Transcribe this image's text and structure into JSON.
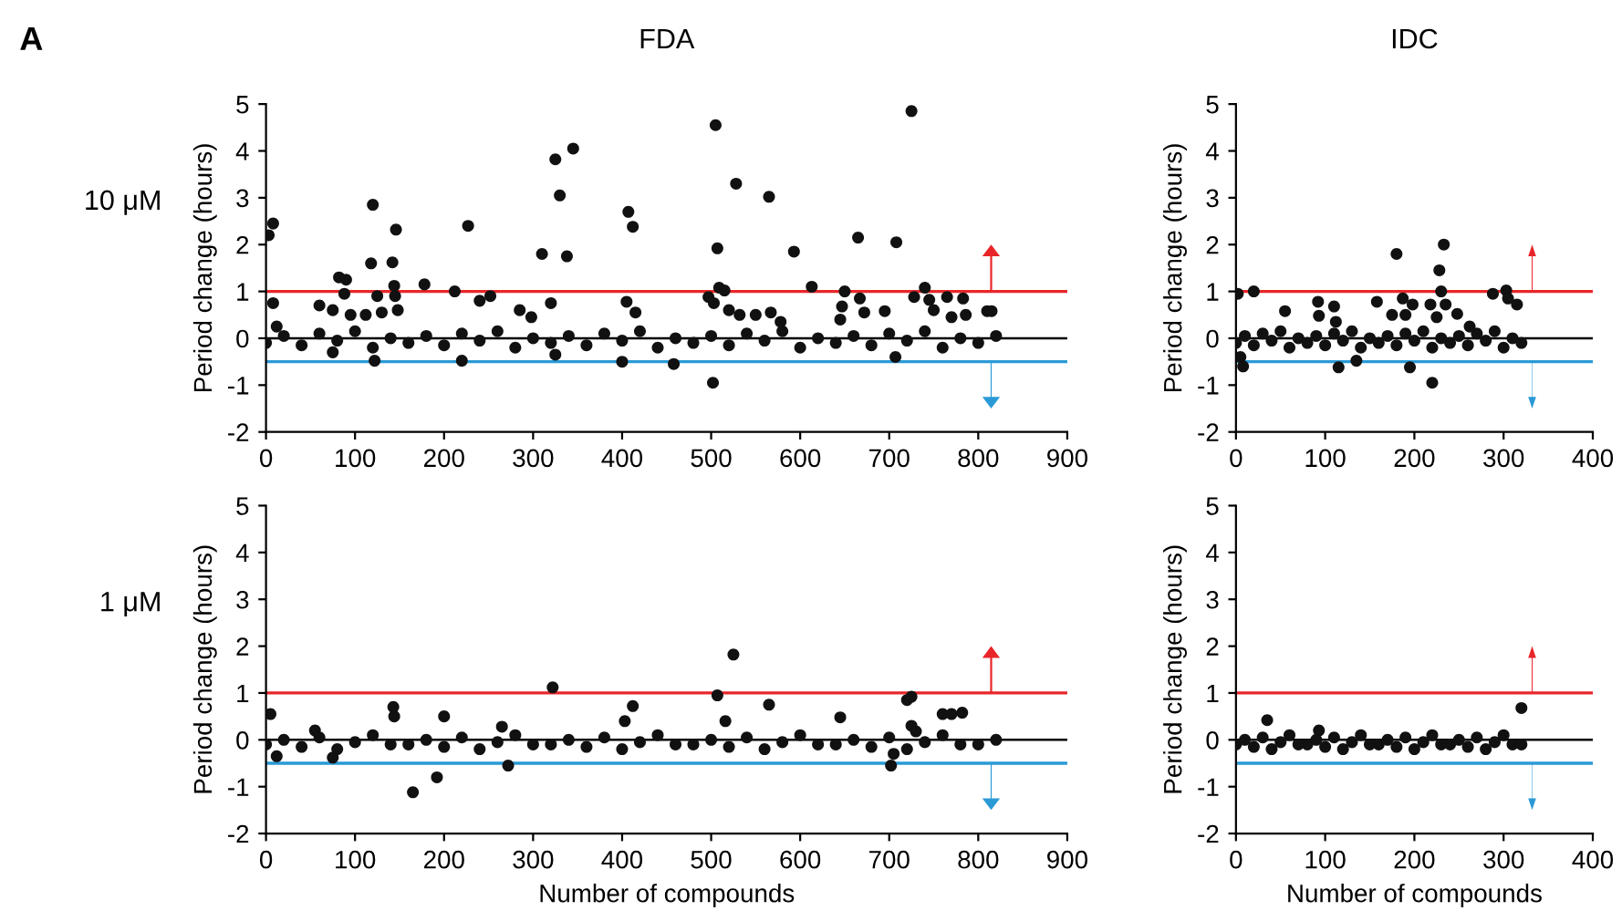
{
  "chart_data": [
    {
      "type": "scatter",
      "title": "FDA",
      "ylabel": "Period change (hours)",
      "annotations": [
        "A",
        "10 μM"
      ],
      "xlim": [
        0,
        900
      ],
      "xticks": [
        0,
        100,
        200,
        300,
        400,
        500,
        600,
        700,
        800,
        900
      ],
      "ylim": [
        -2,
        5
      ],
      "yticks": [
        -2,
        -1,
        0,
        1,
        2,
        3,
        4,
        5
      ],
      "grid": false,
      "legend": false,
      "marker": "circle",
      "ref_lines": [
        {
          "axis": "y",
          "value": 1,
          "color": "#e8262a"
        },
        {
          "axis": "y",
          "value": 0,
          "color": "#000000"
        },
        {
          "axis": "y",
          "value": -0.5,
          "color": "#2a9ad6"
        }
      ],
      "series": [
        {
          "color": "#111111",
          "x": [
            3,
            8,
            8,
            12,
            60,
            75,
            75,
            82,
            88,
            90,
            95,
            112,
            118,
            120,
            122,
            125,
            130,
            142,
            144,
            145,
            146,
            148,
            178,
            212,
            220,
            227,
            240,
            252,
            285,
            298,
            310,
            320,
            325,
            330,
            338,
            345,
            325,
            405,
            400,
            407,
            412,
            415,
            458,
            497,
            502,
            503,
            505,
            507,
            509,
            515,
            520,
            528,
            532,
            550,
            565,
            567,
            578,
            593,
            613,
            645,
            647,
            650,
            665,
            667,
            672,
            695,
            707,
            708,
            725,
            728,
            740,
            745,
            750,
            765,
            770,
            783,
            786,
            810,
            815
          ],
          "values": [
            2.2,
            2.45,
            0.75,
            0.25,
            0.7,
            0.6,
            -0.3,
            1.3,
            0.95,
            1.25,
            0.5,
            0.5,
            1.6,
            2.85,
            -0.48,
            0.9,
            0.55,
            1.62,
            1.12,
            0.9,
            2.32,
            0.6,
            1.15,
            1.0,
            -0.48,
            2.4,
            0.8,
            0.9,
            0.6,
            0.45,
            1.8,
            0.75,
            3.82,
            3.05,
            1.75,
            4.05,
            -0.35,
            0.78,
            -0.5,
            2.7,
            2.38,
            0.55,
            -0.55,
            0.88,
            -0.95,
            0.75,
            4.55,
            1.92,
            1.08,
            1.02,
            0.6,
            3.3,
            0.5,
            0.5,
            3.02,
            0.55,
            0.35,
            1.85,
            1.1,
            0.4,
            0.68,
            1.0,
            2.15,
            0.85,
            0.55,
            0.58,
            -0.4,
            2.05,
            4.85,
            0.88,
            1.08,
            0.82,
            0.6,
            0.88,
            0.45,
            0.85,
            0.5,
            0.58,
            0.58
          ]
        },
        {
          "color": "#111111",
          "x": [
            0,
            20,
            40,
            60,
            80,
            100,
            120,
            140,
            160,
            180,
            200,
            220,
            240,
            260,
            280,
            300,
            320,
            340,
            360,
            380,
            400,
            420,
            440,
            460,
            480,
            500,
            520,
            540,
            560,
            580,
            600,
            620,
            640,
            660,
            680,
            700,
            720,
            740,
            760,
            780,
            800,
            820
          ],
          "values": [
            -0.1,
            0.05,
            -0.15,
            0.1,
            -0.05,
            0.15,
            -0.2,
            0,
            -0.1,
            0.05,
            -0.15,
            0.1,
            -0.05,
            0.15,
            -0.2,
            0,
            -0.1,
            0.05,
            -0.15,
            0.1,
            -0.05,
            0.15,
            -0.2,
            0,
            -0.1,
            0.05,
            -0.15,
            0.1,
            -0.05,
            0.15,
            -0.2,
            0,
            -0.1,
            0.05,
            -0.15,
            0.1,
            -0.05,
            0.15,
            -0.2,
            0,
            -0.1,
            0.05
          ]
        }
      ]
    },
    {
      "type": "scatter",
      "title": "IDC",
      "ylabel": "Period change (hours)",
      "xlim": [
        0,
        400
      ],
      "xticks": [
        0,
        100,
        200,
        300,
        400
      ],
      "ylim": [
        -2,
        5
      ],
      "yticks": [
        -2,
        -1,
        0,
        1,
        2,
        3,
        4,
        5
      ],
      "grid": false,
      "legend": false,
      "marker": "circle",
      "ref_lines": [
        {
          "axis": "y",
          "value": 1,
          "color": "#e8262a"
        },
        {
          "axis": "y",
          "value": 0,
          "color": "#000000"
        },
        {
          "axis": "y",
          "value": -0.5,
          "color": "#2a9ad6"
        }
      ],
      "series": [
        {
          "color": "#111111",
          "x": [
            2,
            5,
            8,
            20,
            55,
            92,
            93,
            110,
            112,
            115,
            135,
            158,
            175,
            180,
            187,
            190,
            195,
            198,
            218,
            220,
            225,
            228,
            230,
            233,
            235,
            248,
            262,
            288,
            303,
            305,
            315
          ],
          "values": [
            0.95,
            -0.4,
            -0.6,
            1.0,
            0.58,
            0.78,
            0.48,
            0.68,
            0.35,
            -0.62,
            -0.48,
            0.78,
            0.5,
            1.8,
            0.85,
            0.5,
            -0.62,
            0.72,
            0.72,
            -0.95,
            0.45,
            1.45,
            1.0,
            2.0,
            0.72,
            0.52,
            0.25,
            0.95,
            1.02,
            0.85,
            0.72
          ]
        },
        {
          "color": "#111111",
          "x": [
            0,
            10,
            20,
            30,
            40,
            50,
            60,
            70,
            80,
            90,
            100,
            110,
            120,
            130,
            140,
            150,
            160,
            170,
            180,
            190,
            200,
            210,
            220,
            230,
            240,
            250,
            260,
            270,
            280,
            290,
            300,
            310,
            320
          ],
          "values": [
            -0.1,
            0.05,
            -0.15,
            0.1,
            -0.05,
            0.15,
            -0.2,
            0,
            -0.1,
            0.05,
            -0.15,
            0.1,
            -0.05,
            0.15,
            -0.2,
            0,
            -0.1,
            0.05,
            -0.15,
            0.1,
            -0.05,
            0.15,
            -0.2,
            0,
            -0.1,
            0.05,
            -0.15,
            0.1,
            -0.05,
            0.15,
            -0.2,
            0,
            -0.1
          ]
        }
      ]
    },
    {
      "type": "scatter",
      "ylabel": "Period change (hours)",
      "xlabel": "Number of compounds",
      "annotations": [
        "1 μM"
      ],
      "xlim": [
        0,
        900
      ],
      "xticks": [
        0,
        100,
        200,
        300,
        400,
        500,
        600,
        700,
        800,
        900
      ],
      "ylim": [
        -2,
        5
      ],
      "yticks": [
        -2,
        -1,
        0,
        1,
        2,
        3,
        4,
        5
      ],
      "grid": false,
      "legend": false,
      "marker": "circle",
      "ref_lines": [
        {
          "axis": "y",
          "value": 1,
          "color": "#e8262a"
        },
        {
          "axis": "y",
          "value": 0,
          "color": "#000000"
        },
        {
          "axis": "y",
          "value": -0.5,
          "color": "#2a9ad6"
        }
      ],
      "series": [
        {
          "color": "#111111",
          "x": [
            5,
            12,
            55,
            75,
            143,
            144,
            165,
            192,
            200,
            265,
            272,
            322,
            403,
            412,
            507,
            516,
            525,
            565,
            645,
            702,
            705,
            720,
            725,
            725,
            730,
            760,
            770,
            782
          ],
          "values": [
            0.55,
            -0.35,
            0.2,
            -0.38,
            0.7,
            0.5,
            -1.12,
            -0.8,
            0.5,
            0.28,
            -0.55,
            1.12,
            0.4,
            0.72,
            0.95,
            0.4,
            1.82,
            0.75,
            0.48,
            -0.55,
            -0.3,
            0.85,
            0.92,
            0.3,
            0.18,
            0.55,
            0.55,
            0.58
          ]
        },
        {
          "color": "#111111",
          "x": [
            0,
            20,
            40,
            60,
            80,
            100,
            120,
            140,
            160,
            180,
            200,
            220,
            240,
            260,
            280,
            300,
            320,
            340,
            360,
            380,
            400,
            420,
            440,
            460,
            480,
            500,
            520,
            540,
            560,
            580,
            600,
            620,
            640,
            660,
            680,
            700,
            720,
            740,
            760,
            780,
            800,
            820
          ],
          "values": [
            -0.1,
            0,
            -0.15,
            0.05,
            -0.2,
            -0.05,
            0.1,
            -0.1,
            -0.1,
            0,
            -0.15,
            0.05,
            -0.2,
            -0.05,
            0.1,
            -0.1,
            -0.1,
            0,
            -0.15,
            0.05,
            -0.2,
            -0.05,
            0.1,
            -0.1,
            -0.1,
            0,
            -0.15,
            0.05,
            -0.2,
            -0.05,
            0.1,
            -0.1,
            -0.1,
            0,
            -0.15,
            0.05,
            -0.2,
            -0.05,
            0.1,
            -0.1,
            -0.1,
            0
          ]
        }
      ]
    },
    {
      "type": "scatter",
      "ylabel": "Period change (hours)",
      "xlabel": "Number of compounds",
      "xlim": [
        0,
        400
      ],
      "xticks": [
        0,
        100,
        200,
        300,
        400
      ],
      "ylim": [
        -2,
        5
      ],
      "yticks": [
        -2,
        -1,
        0,
        1,
        2,
        3,
        4,
        5
      ],
      "grid": false,
      "legend": false,
      "marker": "circle",
      "ref_lines": [
        {
          "axis": "y",
          "value": 1,
          "color": "#e8262a"
        },
        {
          "axis": "y",
          "value": 0,
          "color": "#000000"
        },
        {
          "axis": "y",
          "value": -0.5,
          "color": "#2a9ad6"
        }
      ],
      "series": [
        {
          "color": "#111111",
          "x": [
            35,
            58,
            93,
            320
          ],
          "values": [
            0.42,
            null,
            0.2,
            0.68
          ]
        },
        {
          "color": "#111111",
          "x": [
            0,
            10,
            20,
            30,
            40,
            50,
            60,
            70,
            80,
            90,
            100,
            110,
            120,
            130,
            140,
            150,
            160,
            170,
            180,
            190,
            200,
            210,
            220,
            230,
            240,
            250,
            260,
            270,
            280,
            290,
            300,
            310,
            320
          ],
          "values": [
            -0.1,
            0,
            -0.15,
            0.05,
            -0.2,
            -0.05,
            0.1,
            -0.1,
            -0.1,
            0,
            -0.15,
            0.05,
            -0.2,
            -0.05,
            0.1,
            -0.1,
            -0.1,
            0,
            -0.15,
            0.05,
            -0.2,
            -0.05,
            0.1,
            -0.1,
            -0.1,
            0,
            -0.15,
            0.05,
            -0.2,
            -0.05,
            0.1,
            -0.1,
            -0.1
          ]
        }
      ]
    }
  ]
}
